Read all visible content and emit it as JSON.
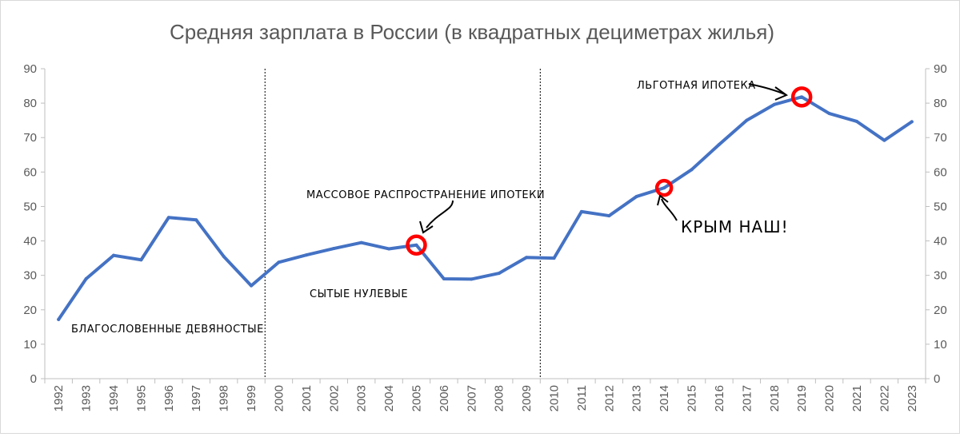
{
  "chart_data": {
    "type": "line",
    "title": "Средняя зарплата в России (в квадратных дециметрах жилья)",
    "xlabel": "",
    "ylabel": "",
    "ylim": [
      0,
      90
    ],
    "yticks": [
      0,
      10,
      20,
      30,
      40,
      50,
      60,
      70,
      80,
      90
    ],
    "secondary_y_axis": true,
    "grid": false,
    "legend": "none",
    "categories": [
      "1992",
      "1993",
      "1994",
      "1995",
      "1996",
      "1997",
      "1998",
      "1999",
      "2000",
      "2001",
      "2002",
      "2003",
      "2004",
      "2005",
      "2006",
      "2007",
      "2008",
      "2009",
      "2010",
      "2011",
      "2012",
      "2013",
      "2014",
      "2015",
      "2016",
      "2017",
      "2018",
      "2019",
      "2020",
      "2021",
      "2022",
      "2023"
    ],
    "series": [
      {
        "values": [
          17.2,
          29.0,
          35.8,
          34.5,
          46.8,
          46.1,
          35.5,
          27.0,
          33.8,
          35.9,
          37.8,
          39.5,
          37.7,
          38.8,
          29.0,
          28.9,
          30.6,
          35.2,
          35.0,
          48.5,
          47.3,
          52.9,
          55.4,
          60.7,
          68.0,
          75.0,
          79.6,
          81.8,
          77.0,
          74.7,
          69.2,
          74.6
        ],
        "color": "#4472c4"
      }
    ],
    "dividers_after": [
      "1999",
      "2009"
    ],
    "highlights": [
      "2005",
      "2014",
      "2019"
    ],
    "highlight_color": "#ff0000",
    "annotations": [
      {
        "id": "nineties",
        "text": "БЛАГОСЛОВЕННЫЕ ДЕВЯНОСТЫЕ"
      },
      {
        "id": "zeros",
        "text": "СЫТЫЕ НУЛЕВЫЕ"
      },
      {
        "id": "mortgage",
        "text": "МАССОВОЕ РАСПРОСТРАНЕНИЕ ИПОТЕКИ"
      },
      {
        "id": "crimea",
        "text": "КРЫМ НАШ!"
      },
      {
        "id": "preferential",
        "text": "ЛЬГОТНАЯ ИПОТЕКА"
      }
    ]
  }
}
